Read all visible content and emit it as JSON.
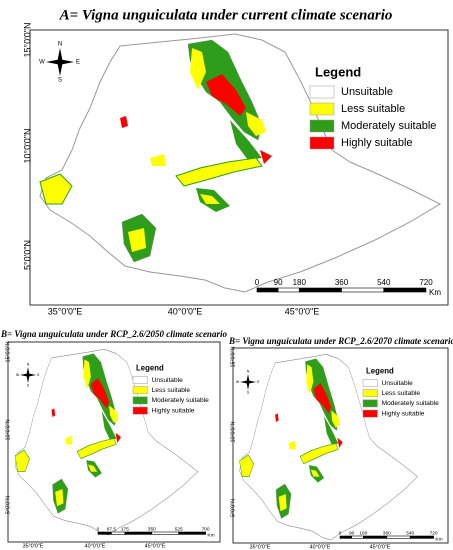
{
  "panels": [
    {
      "title": "A= Vigna unguiculata under current climate scenario",
      "lat_labels": [
        "15°0'0\"N",
        "10°0'0\"N",
        "5°0'0\"N"
      ],
      "lon_labels": [
        "35°0'0\"E",
        "40°0'0\"E",
        "45°0'0\"E"
      ],
      "compass": [
        "N",
        "E",
        "S",
        "W"
      ],
      "legend": {
        "title": "Legend",
        "items": [
          {
            "label": "Unsuitable",
            "color": "#ffffff"
          },
          {
            "label": "Less suitable",
            "color": "#ffff00"
          },
          {
            "label": "Moderately suitable",
            "color": "#2e9e1a"
          },
          {
            "label": "Highly suitable",
            "color": "#ff0000"
          }
        ]
      },
      "scale": {
        "ticks": [
          0,
          90,
          180,
          360,
          540,
          720
        ],
        "unit": "Km"
      }
    },
    {
      "title": "B= Vigna unguiculata under RCP_2.6/2050 climate scenario",
      "lat_labels": [
        "15°0'0\"N",
        "10°0'0\"N",
        "5°0'0\"N"
      ],
      "lon_labels": [
        "35°0'0\"E",
        "40°0'0\"E",
        "45°0'0\"E"
      ],
      "compass": [
        "N",
        "E",
        "S",
        "W"
      ],
      "legend": {
        "title": "Legend",
        "items": [
          {
            "label": "Unsuitable",
            "color": "#ffffff"
          },
          {
            "label": "Less suitable",
            "color": "#ffff00"
          },
          {
            "label": "Moderately suitable",
            "color": "#2e9e1a"
          },
          {
            "label": "Highly suitable",
            "color": "#ff0000"
          }
        ]
      },
      "scale": {
        "ticks": [
          0,
          87.5,
          175,
          350,
          525,
          700
        ],
        "unit": "Km"
      }
    },
    {
      "title": "B= Vigna unguiculata under RCP_2.6/2070 climate scenario",
      "lat_labels": [
        "15°0'0\"N",
        "10°0'0\"N",
        "5°0'0\"N"
      ],
      "lon_labels": [
        "35°0'0\"E",
        "40°0'0\"E",
        "45°0'0\"E"
      ],
      "compass": [
        "N",
        "E",
        "S",
        "W"
      ],
      "legend": {
        "title": "Legend",
        "items": [
          {
            "label": "Unsuitable",
            "color": "#ffffff"
          },
          {
            "label": "Less suitable",
            "color": "#ffff00"
          },
          {
            "label": "Moderately suitable",
            "color": "#2e9e1a"
          },
          {
            "label": "Highly suitable",
            "color": "#ff0000"
          }
        ]
      },
      "scale": {
        "ticks": [
          0,
          90,
          180,
          360,
          540,
          720
        ],
        "unit": "Km"
      }
    }
  ]
}
